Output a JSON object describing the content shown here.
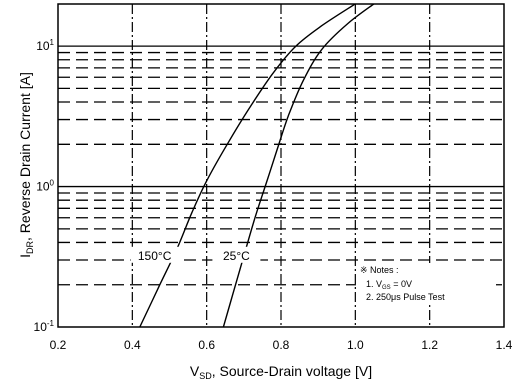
{
  "chart_data": {
    "type": "line",
    "x_axis": {
      "min": 0.2,
      "max": 1.4,
      "ticks": [
        "0.2",
        "0.4",
        "0.6",
        "0.8",
        "1.0",
        "1.2",
        "1.4"
      ],
      "label_main": "V",
      "label_sub": "SD",
      "label_rest": ", Source-Drain voltage [V]"
    },
    "y_axis": {
      "scale": "log",
      "min_exp": -1,
      "max_exp": 1.3,
      "ticks": [
        {
          "base": "10",
          "exp": "-1",
          "value_exp": -1
        },
        {
          "base": "10",
          "exp": "0",
          "value_exp": 0
        },
        {
          "base": "10",
          "exp": "1",
          "value_exp": 1
        }
      ],
      "label_main": "I",
      "label_sub": "DR",
      "label_rest": ", Reverse Drain Current [A]"
    },
    "grid": true,
    "series": [
      {
        "name": "150°C",
        "color": "#000000",
        "x": [
          0.42,
          0.47,
          0.52,
          0.56,
          0.6,
          0.66,
          0.72,
          0.78,
          0.84,
          0.91,
          1.0
        ],
        "y": [
          0.1,
          0.19,
          0.36,
          0.65,
          1.1,
          2.1,
          3.8,
          6.5,
          10.0,
          14.0,
          20.0
        ]
      },
      {
        "name": "25°C",
        "color": "#000000",
        "x": [
          0.645,
          0.67,
          0.7,
          0.73,
          0.76,
          0.79,
          0.82,
          0.86,
          0.91,
          0.98,
          1.05
        ],
        "y": [
          0.1,
          0.17,
          0.32,
          0.6,
          1.05,
          1.85,
          3.2,
          5.7,
          9.5,
          14.5,
          20.0
        ]
      }
    ],
    "series_labels": [
      {
        "text": "150°C",
        "x": 0.46,
        "y_exp": -0.5
      },
      {
        "text": "25°C",
        "x": 0.68,
        "y_exp": -0.5
      }
    ],
    "notes": {
      "title": "※ Notes :",
      "line1_pre": "1. V",
      "line1_sub": "GS",
      "line1_post": " = 0V",
      "line2": "2. 250μs Pulse Test"
    }
  }
}
